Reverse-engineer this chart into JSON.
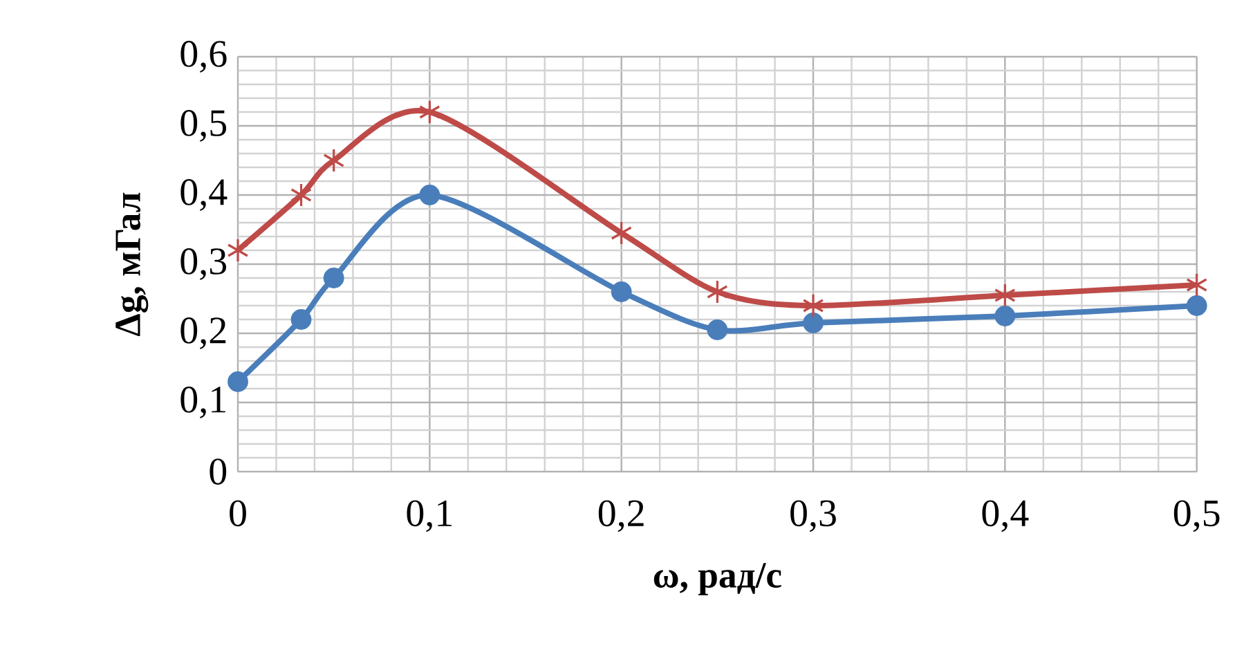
{
  "chart_data": {
    "type": "line",
    "xlabel": "ω, рад/с",
    "ylabel": "Δg, мГал",
    "xlim": [
      0,
      0.5
    ],
    "ylim": [
      0,
      0.6
    ],
    "xticks": [
      {
        "value": 0,
        "label": "0"
      },
      {
        "value": 0.1,
        "label": "0,1"
      },
      {
        "value": 0.2,
        "label": "0,2"
      },
      {
        "value": 0.3,
        "label": "0,3"
      },
      {
        "value": 0.4,
        "label": "0,4"
      },
      {
        "value": 0.5,
        "label": "0,5"
      }
    ],
    "yticks": [
      {
        "value": 0,
        "label": "0"
      },
      {
        "value": 0.1,
        "label": "0,1"
      },
      {
        "value": 0.2,
        "label": "0,2"
      },
      {
        "value": 0.3,
        "label": "0,3"
      },
      {
        "value": 0.4,
        "label": "0,4"
      },
      {
        "value": 0.5,
        "label": "0,5"
      },
      {
        "value": 0.6,
        "label": "0,6"
      }
    ],
    "grid": true,
    "line_style": "solid",
    "series": [
      {
        "color": "#4a7ebb",
        "marker": "circle",
        "x": [
          0,
          0.033,
          0.05,
          0.1,
          0.2,
          0.25,
          0.3,
          0.4,
          0.5
        ],
        "values": [
          0.13,
          0.22,
          0.28,
          0.4,
          0.26,
          0.205,
          0.215,
          0.225,
          0.24
        ]
      },
      {
        "color": "#be4b48",
        "marker": "cross",
        "x": [
          0,
          0.033,
          0.05,
          0.1,
          0.2,
          0.25,
          0.3,
          0.4,
          0.5
        ],
        "values": [
          0.32,
          0.4,
          0.45,
          0.52,
          0.345,
          0.26,
          0.24,
          0.255,
          0.27
        ]
      }
    ]
  }
}
